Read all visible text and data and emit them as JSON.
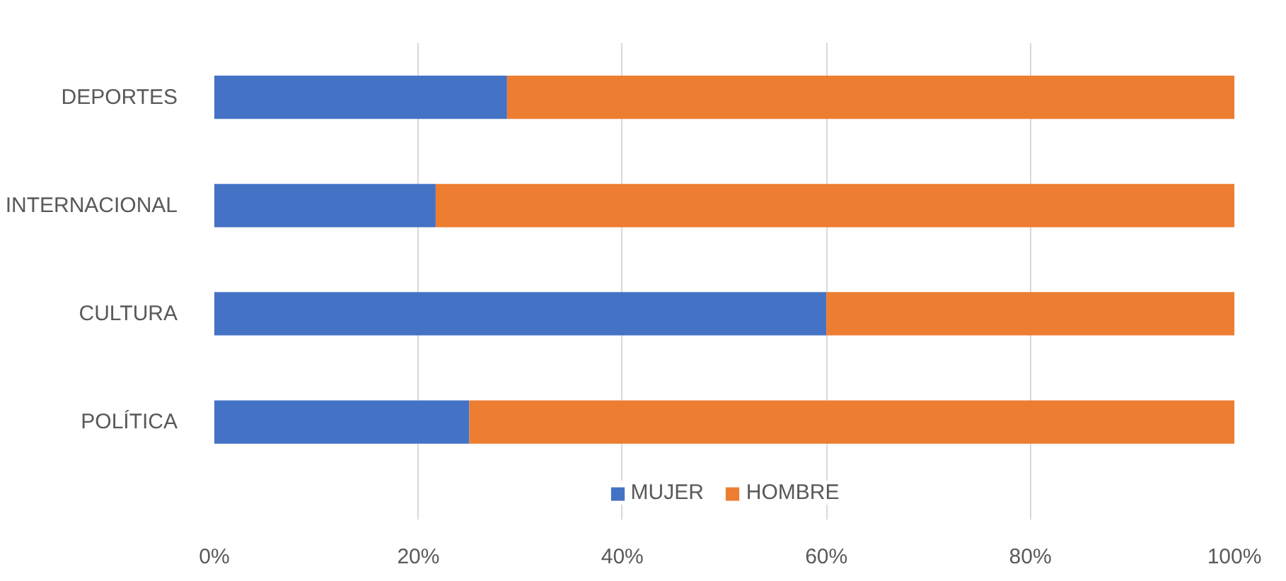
{
  "chart_data": {
    "type": "bar",
    "orientation": "horizontal",
    "stacked": true,
    "categories": [
      "DEPORTES",
      "INTERNACIONAL",
      "CULTURA",
      "POLÍTICA"
    ],
    "series": [
      {
        "name": "MUJER",
        "color": "#4472c4",
        "values": [
          28.7,
          21.7,
          60,
          25
        ]
      },
      {
        "name": "HOMBRE",
        "color": "#ed7d31",
        "values": [
          71.3,
          78.3,
          40,
          75
        ]
      }
    ],
    "xlim": [
      0,
      100
    ],
    "xticks": [
      {
        "value": 0,
        "label": "0%"
      },
      {
        "value": 20,
        "label": "20%"
      },
      {
        "value": 40,
        "label": "40%"
      },
      {
        "value": 60,
        "label": "60%"
      },
      {
        "value": 80,
        "label": "80%"
      },
      {
        "value": 100,
        "label": "100%"
      }
    ],
    "grid": "x",
    "legend": "bottom"
  }
}
